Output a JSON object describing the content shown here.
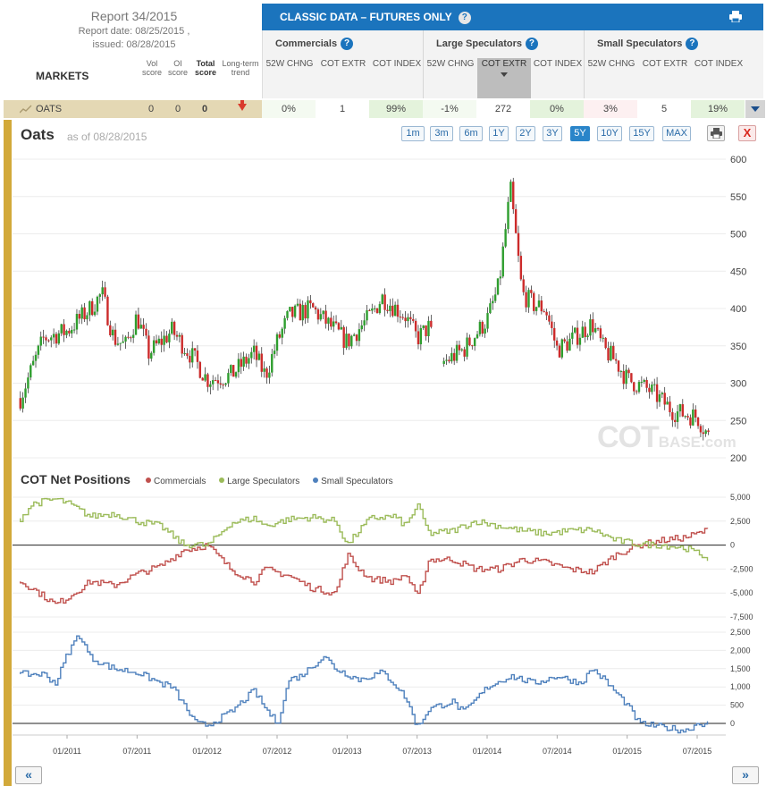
{
  "report": {
    "title": "Report 34/2015",
    "report_date": "Report date: 08/25/2015 ,",
    "issued": "issued: 08/28/2015"
  },
  "markets_label": "MARKETS",
  "score_columns": {
    "vol": "Vol score",
    "oi": "OI score",
    "total": "Total score",
    "trend": "Long-term trend"
  },
  "classic_header": "CLASSIC DATA – FUTURES ONLY",
  "groups": [
    {
      "title": "Commercials",
      "cols": [
        "52W CHNG",
        "COT EXTR",
        "COT INDEX"
      ]
    },
    {
      "title": "Large Speculators",
      "cols": [
        "52W CHNG",
        "COT EXTR",
        "COT INDEX"
      ]
    },
    {
      "title": "Small Speculators",
      "cols": [
        "52W CHNG",
        "COT EXTR",
        "COT INDEX"
      ]
    }
  ],
  "row": {
    "market": "OATS",
    "vol": "0",
    "oi": "0",
    "total": "0",
    "trend_icon": "down-arrow-icon",
    "values": [
      "0%",
      "1",
      "99%",
      "-1%",
      "272",
      "0%",
      "3%",
      "5",
      "19%"
    ],
    "cell_colors": [
      "#f4faf1",
      "#ffffff",
      "#e4f3dc",
      "#f4faf1",
      "#ffffff",
      "#e4f3dc",
      "#fdf0f1",
      "#ffffff",
      "#e4f3dc"
    ]
  },
  "chart": {
    "title": "Oats",
    "as_of": "as of 08/28/2015",
    "ranges": [
      "1m",
      "3m",
      "6m",
      "1Y",
      "2Y",
      "3Y",
      "5Y",
      "10Y",
      "15Y",
      "MAX"
    ],
    "active_range": "5Y",
    "close_label": "X",
    "watermark": "COT",
    "watermark_small": "BASE.com"
  },
  "cot": {
    "title": "COT Net Positions",
    "legend": [
      {
        "name": "Commercials",
        "color": "#c0504d"
      },
      {
        "name": "Large Speculators",
        "color": "#9bbb59"
      },
      {
        "name": "Small Speculators",
        "color": "#4f81bd"
      }
    ]
  },
  "nav": {
    "prev": "«",
    "next": "»"
  },
  "chart_data": [
    {
      "type": "candlestick",
      "title": "Oats",
      "x_tick_labels": [
        "01/2011",
        "07/2011",
        "01/2012",
        "07/2012",
        "01/2013",
        "07/2013",
        "01/2014",
        "07/2014",
        "01/2015",
        "07/2015"
      ],
      "ylim": [
        200,
        600
      ],
      "y_ticks": [
        200,
        250,
        300,
        350,
        400,
        450,
        500,
        550,
        600
      ],
      "up_color": "#2e9e2e",
      "down_color": "#cc2b2b",
      "close_anchors": [
        [
          "2010-09",
          280
        ],
        [
          "2010-11",
          360
        ],
        [
          "2011-01",
          370
        ],
        [
          "2011-03",
          400
        ],
        [
          "2011-04",
          420
        ],
        [
          "2011-05",
          360
        ],
        [
          "2011-06",
          350
        ],
        [
          "2011-07",
          390
        ],
        [
          "2011-08",
          340
        ],
        [
          "2011-10",
          370
        ],
        [
          "2011-12",
          330
        ],
        [
          "2012-01",
          305
        ],
        [
          "2012-03",
          310
        ],
        [
          "2012-05",
          340
        ],
        [
          "2012-06",
          310
        ],
        [
          "2012-07",
          355
        ],
        [
          "2012-08",
          390
        ],
        [
          "2012-10",
          400
        ],
        [
          "2012-12",
          370
        ],
        [
          "2013-01",
          355
        ],
        [
          "2013-03",
          390
        ],
        [
          "2013-04",
          415
        ],
        [
          "2013-06",
          390
        ],
        [
          "2013-07",
          360
        ],
        [
          "2013-08",
          375
        ],
        [
          "2013-09",
          325
        ],
        [
          "2013-11",
          345
        ],
        [
          "2014-01",
          385
        ],
        [
          "2014-02",
          430
        ],
        [
          "2014-03",
          560
        ],
        [
          "2014-04",
          420
        ],
        [
          "2014-05",
          405
        ],
        [
          "2014-06",
          400
        ],
        [
          "2014-07",
          345
        ],
        [
          "2014-08",
          355
        ],
        [
          "2014-10",
          380
        ],
        [
          "2014-11",
          345
        ],
        [
          "2014-12",
          330
        ],
        [
          "2015-01",
          305
        ],
        [
          "2015-03",
          290
        ],
        [
          "2015-05",
          262
        ],
        [
          "2015-07",
          255
        ],
        [
          "2015-08",
          228
        ]
      ]
    },
    {
      "type": "line",
      "title": "COT Net Positions",
      "ylim": [
        -7500,
        5000
      ],
      "y_ticks": [
        -7500,
        -5000,
        -2500,
        0,
        2500,
        5000
      ],
      "series": [
        {
          "name": "Commercials",
          "color": "#c0504d",
          "points": [
            [
              "2010-09",
              -3800
            ],
            [
              "2010-10",
              -4500
            ],
            [
              "2010-12",
              -6200
            ],
            [
              "2011-01",
              -5500
            ],
            [
              "2011-03",
              -3800
            ],
            [
              "2011-05",
              -4200
            ],
            [
              "2011-07",
              -3000
            ],
            [
              "2011-09",
              -2200
            ],
            [
              "2011-11",
              -500
            ],
            [
              "2011-12",
              -300
            ],
            [
              "2012-01",
              0
            ],
            [
              "2012-03",
              -2500
            ],
            [
              "2012-05",
              -3800
            ],
            [
              "2012-06",
              -2500
            ],
            [
              "2012-08",
              -3200
            ],
            [
              "2012-10",
              -4500
            ],
            [
              "2012-12",
              -5000
            ],
            [
              "2013-01",
              -1000
            ],
            [
              "2013-02",
              -2500
            ],
            [
              "2013-03",
              -3500
            ],
            [
              "2013-05",
              -3800
            ],
            [
              "2013-06",
              -3000
            ],
            [
              "2013-07",
              -5500
            ],
            [
              "2013-08",
              -1500
            ],
            [
              "2013-10",
              -1500
            ],
            [
              "2013-12",
              -2500
            ],
            [
              "2014-02",
              -2500
            ],
            [
              "2014-04",
              -1500
            ],
            [
              "2014-06",
              -1800
            ],
            [
              "2014-08",
              -2500
            ],
            [
              "2014-10",
              -2800
            ],
            [
              "2014-12",
              -1000
            ],
            [
              "2015-02",
              0
            ],
            [
              "2015-04",
              500
            ],
            [
              "2015-06",
              800
            ],
            [
              "2015-08",
              1600
            ]
          ]
        },
        {
          "name": "Large Speculators",
          "color": "#9bbb59",
          "points": [
            [
              "2010-09",
              2800
            ],
            [
              "2010-10",
              4300
            ],
            [
              "2010-12",
              4800
            ],
            [
              "2011-01",
              4400
            ],
            [
              "2011-03",
              3000
            ],
            [
              "2011-05",
              3300
            ],
            [
              "2011-07",
              2500
            ],
            [
              "2011-09",
              2000
            ],
            [
              "2011-11",
              0
            ],
            [
              "2011-12",
              100
            ],
            [
              "2012-01",
              -100
            ],
            [
              "2012-03",
              2300
            ],
            [
              "2012-05",
              2800
            ],
            [
              "2012-06",
              2000
            ],
            [
              "2012-08",
              2700
            ],
            [
              "2012-10",
              2900
            ],
            [
              "2012-12",
              2500
            ],
            [
              "2013-01",
              0
            ],
            [
              "2013-02",
              1500
            ],
            [
              "2013-03",
              2800
            ],
            [
              "2013-05",
              3000
            ],
            [
              "2013-06",
              2000
            ],
            [
              "2013-07",
              4200
            ],
            [
              "2013-08",
              1200
            ],
            [
              "2013-10",
              1500
            ],
            [
              "2013-12",
              2500
            ],
            [
              "2014-02",
              2000
            ],
            [
              "2014-04",
              1500
            ],
            [
              "2014-06",
              1200
            ],
            [
              "2014-08",
              1500
            ],
            [
              "2014-10",
              1600
            ],
            [
              "2014-12",
              500
            ],
            [
              "2015-02",
              100
            ],
            [
              "2015-04",
              0
            ],
            [
              "2015-06",
              -300
            ],
            [
              "2015-08",
              -1400
            ]
          ]
        }
      ]
    },
    {
      "type": "line",
      "title": "Small Speculators",
      "ylim": [
        0,
        2500
      ],
      "y_ticks": [
        0,
        500,
        1000,
        1500,
        2000,
        2500
      ],
      "series": [
        {
          "name": "Small Speculators",
          "color": "#4f81bd",
          "points": [
            [
              "2010-09",
              1350
            ],
            [
              "2010-11",
              1350
            ],
            [
              "2010-12",
              1100
            ],
            [
              "2011-01",
              1900
            ],
            [
              "2011-02",
              2450
            ],
            [
              "2011-03",
              1800
            ],
            [
              "2011-05",
              1500
            ],
            [
              "2011-07",
              1400
            ],
            [
              "2011-09",
              1100
            ],
            [
              "2011-10",
              1000
            ],
            [
              "2011-12",
              0
            ],
            [
              "2012-01",
              -50
            ],
            [
              "2012-03",
              300
            ],
            [
              "2012-05",
              900
            ],
            [
              "2012-06",
              400
            ],
            [
              "2012-07",
              0
            ],
            [
              "2012-08",
              1200
            ],
            [
              "2012-09",
              1300
            ],
            [
              "2012-11",
              1850
            ],
            [
              "2012-12",
              1500
            ],
            [
              "2013-02",
              1200
            ],
            [
              "2013-04",
              1400
            ],
            [
              "2013-05",
              1100
            ],
            [
              "2013-06",
              700
            ],
            [
              "2013-07",
              -100
            ],
            [
              "2013-08",
              400
            ],
            [
              "2013-10",
              600
            ],
            [
              "2013-11",
              300
            ],
            [
              "2014-01",
              1000
            ],
            [
              "2014-03",
              1300
            ],
            [
              "2014-05",
              1100
            ],
            [
              "2014-07",
              1300
            ],
            [
              "2014-09",
              1100
            ],
            [
              "2014-10",
              1500
            ],
            [
              "2014-11",
              1200
            ],
            [
              "2015-01",
              500
            ],
            [
              "2015-02",
              0
            ],
            [
              "2015-04",
              -100
            ],
            [
              "2015-06",
              -200
            ],
            [
              "2015-07",
              0
            ],
            [
              "2015-08",
              0
            ]
          ]
        }
      ]
    }
  ]
}
